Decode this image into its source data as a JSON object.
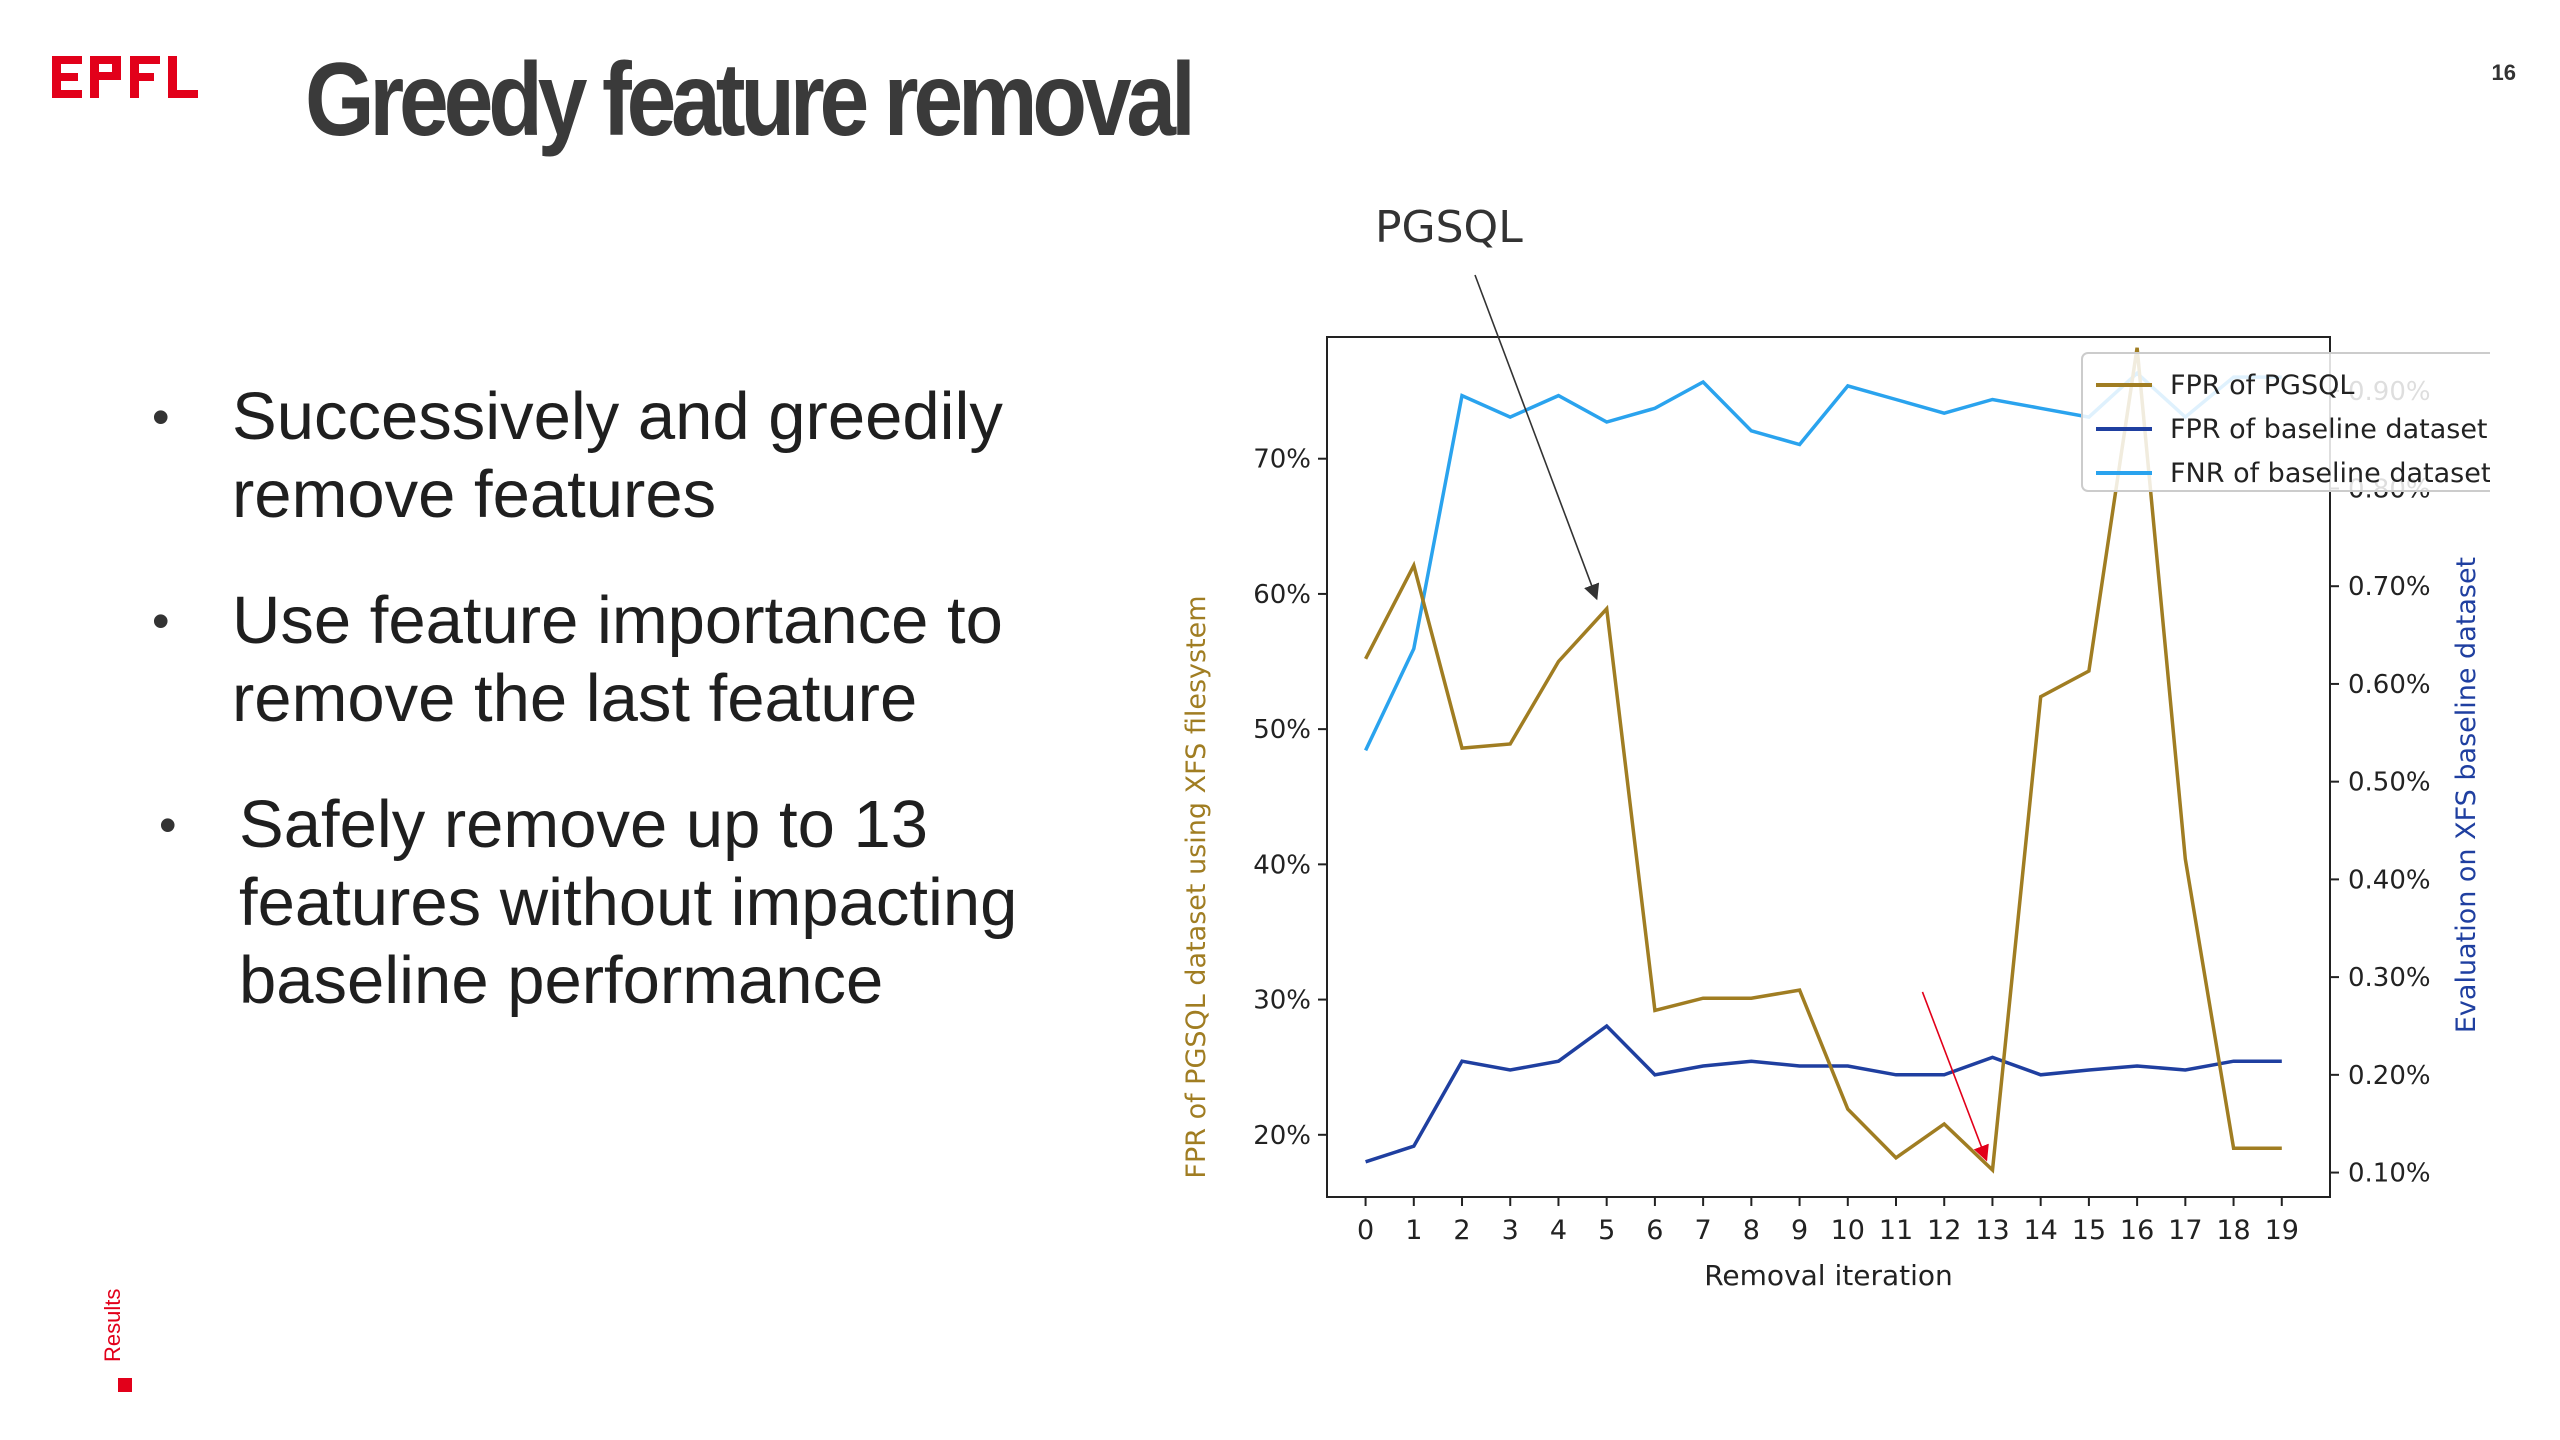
{
  "header": {
    "logo_text": "EPFL",
    "title": "Greedy feature removal",
    "page_number": "16"
  },
  "bullets": [
    {
      "lines": [
        "Successively and greedily",
        "remove features"
      ]
    },
    {
      "lines": [
        "Use feature importance to",
        "remove the last feature"
      ]
    },
    {
      "lines": [
        "Safely remove up to 13",
        "features without impacting",
        "baseline performance"
      ]
    }
  ],
  "footer": {
    "section": "Results"
  },
  "colors": {
    "fpr_pgsql": "#A07D22",
    "fpr_baseline": "#1F3FA0",
    "fnr_baseline": "#2AA3EE",
    "epfl_red": "#E2001A",
    "annotation_red": "#E2001A"
  },
  "chart_data": {
    "type": "line",
    "annotation_label": "PGSQL",
    "xlabel": "Removal iteration",
    "ylabel_left": "FPR of PGSQL dataset using XFS filesystem",
    "ylabel_right": "Evaluation on XFS baseline dataset",
    "x": [
      0,
      1,
      2,
      3,
      4,
      5,
      6,
      7,
      8,
      9,
      10,
      11,
      12,
      13,
      14,
      15,
      16,
      17,
      18,
      19
    ],
    "x_ticks": [
      "0",
      "1",
      "2",
      "3",
      "4",
      "5",
      "6",
      "7",
      "8",
      "9",
      "10",
      "11",
      "12",
      "13",
      "14",
      "15",
      "16",
      "17",
      "18",
      "19"
    ],
    "xlim": [
      -0.8,
      20.0
    ],
    "ylim_left": [
      15.4,
      79.0
    ],
    "yticks_left": [
      20,
      30,
      40,
      50,
      60,
      70
    ],
    "yticklabels_left": [
      "20%",
      "30%",
      "40%",
      "50%",
      "60%",
      "70%"
    ],
    "ylim_right": [
      0.075,
      0.955
    ],
    "yticks_right": [
      0.1,
      0.2,
      0.3,
      0.4,
      0.5,
      0.6,
      0.7,
      0.8,
      0.9
    ],
    "yticklabels_right": [
      "0.10%",
      "0.20%",
      "0.30%",
      "0.40%",
      "0.50%",
      "0.60%",
      "0.70%",
      "0.80%",
      "0.90%"
    ],
    "legend_position": "top-right",
    "series": [
      {
        "name": "FPR of PGSQL",
        "axis": "left",
        "color_key": "fpr_pgsql",
        "values": [
          55.2,
          62.1,
          48.6,
          48.9,
          55.0,
          58.9,
          29.2,
          30.1,
          30.1,
          30.7,
          21.9,
          18.3,
          20.8,
          17.4,
          52.4,
          54.3,
          78.2,
          40.4,
          19.0,
          19.0
        ]
      },
      {
        "name": "FPR of baseline dataset",
        "axis": "right",
        "color_key": "fpr_baseline",
        "values": [
          0.111,
          0.127,
          0.214,
          0.205,
          0.214,
          0.25,
          0.2,
          0.209,
          0.214,
          0.209,
          0.209,
          0.2,
          0.2,
          0.218,
          0.2,
          0.205,
          0.209,
          0.205,
          0.214,
          0.214
        ]
      },
      {
        "name": "FNR of baseline dataset",
        "axis": "right",
        "color_key": "fnr_baseline",
        "values": [
          0.532,
          0.636,
          0.895,
          0.873,
          0.895,
          0.868,
          0.882,
          0.909,
          0.859,
          0.845,
          0.905,
          0.891,
          0.877,
          0.891,
          0.882,
          0.873,
          0.918,
          0.873,
          0.914,
          0.914
        ]
      }
    ],
    "annotations": [
      {
        "label": "PGSQL",
        "target_series": 0,
        "target_x": 5,
        "color_key": "fpr_pgsql_arrow"
      },
      {
        "label": "",
        "target_series": 0,
        "target_x": 13,
        "color_key": "annotation_red"
      }
    ]
  }
}
